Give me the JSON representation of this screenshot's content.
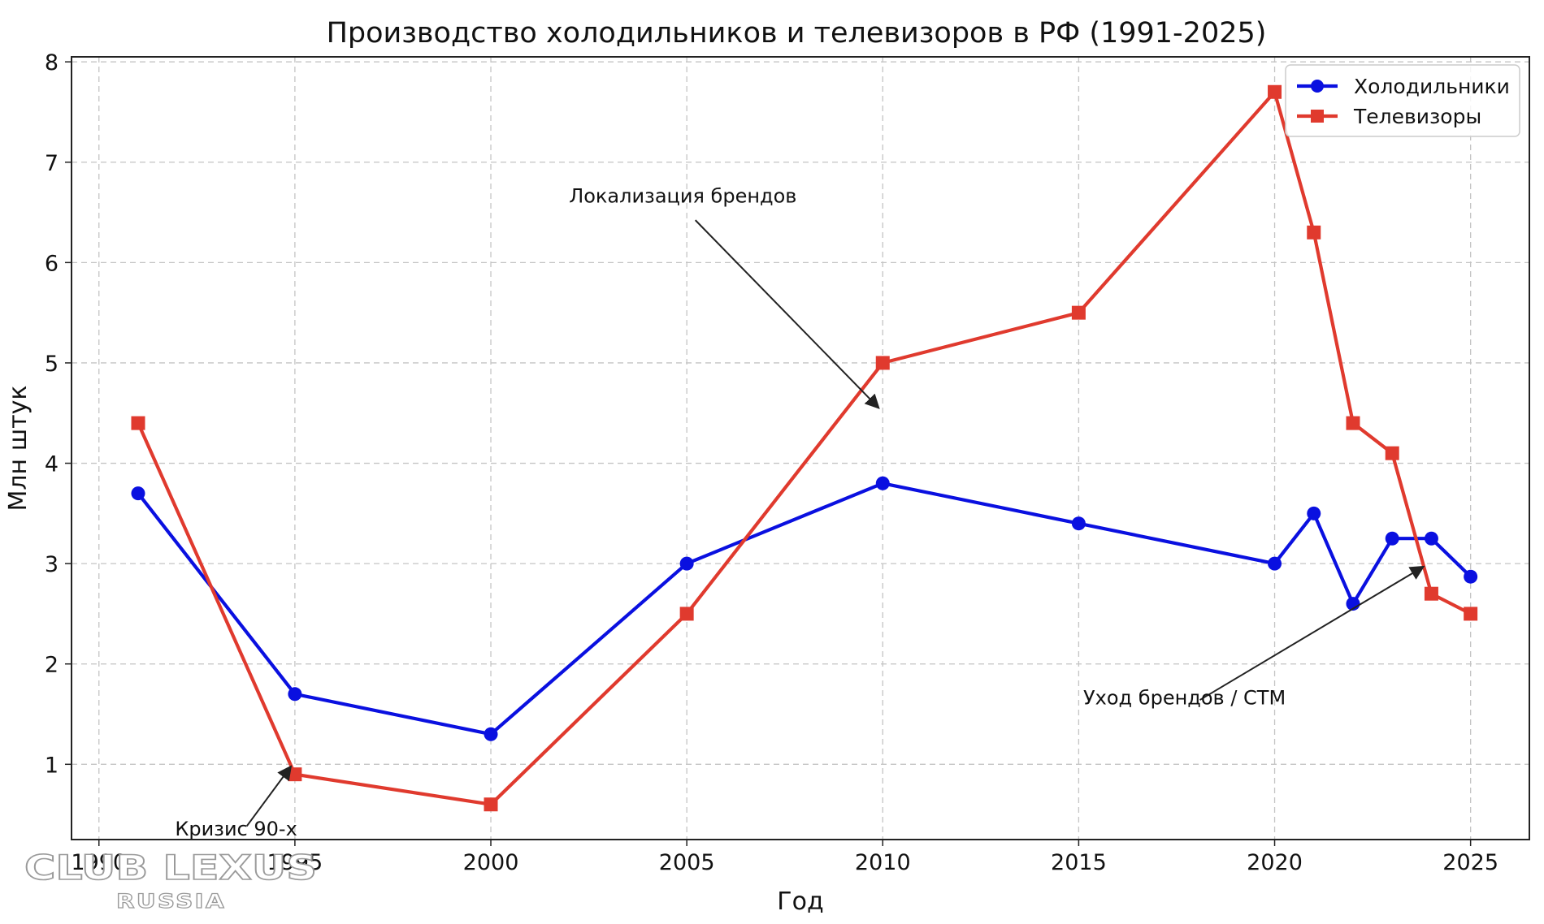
{
  "chart_data": {
    "type": "line",
    "title": "Производство холодильников и телевизоров в РФ (1991-2025)",
    "xlabel": "Год",
    "ylabel": "Млн штук",
    "xlim": [
      1989.3,
      2026.5
    ],
    "ylim": [
      0.25,
      8.05
    ],
    "x_ticks": [
      1990,
      1995,
      2000,
      2005,
      2010,
      2015,
      2020,
      2025
    ],
    "y_ticks": [
      1,
      2,
      3,
      4,
      5,
      6,
      7,
      8
    ],
    "grid": true,
    "legend_position": "top-right",
    "series": [
      {
        "name": "Холодильники",
        "color": "#0a10e0",
        "marker": "circle",
        "x": [
          1991,
          1995,
          2000,
          2005,
          2010,
          2015,
          2020,
          2021,
          2022,
          2023,
          2024,
          2025
        ],
        "values": [
          3.7,
          1.7,
          1.3,
          3.0,
          3.8,
          3.4,
          3.0,
          3.5,
          2.6,
          3.25,
          3.25,
          2.87
        ]
      },
      {
        "name": "Телевизоры",
        "color": "#e03a2e",
        "marker": "square",
        "x": [
          1991,
          1995,
          2000,
          2005,
          2010,
          2015,
          2020,
          2021,
          2022,
          2023,
          2024,
          2025
        ],
        "values": [
          4.4,
          0.9,
          0.6,
          2.5,
          5.0,
          5.5,
          7.7,
          6.3,
          4.4,
          4.1,
          2.7,
          2.5
        ]
      }
    ],
    "annotations": [
      {
        "text": "Локализация брендов",
        "text_x": 2004.9,
        "text_y": 6.55,
        "arrow_x": 2009.9,
        "arrow_y": 4.55
      },
      {
        "text": "Уход брендов / СТМ",
        "text_x": 2017.7,
        "text_y": 1.55,
        "arrow_x": 2023.8,
        "arrow_y": 2.97
      },
      {
        "text": "Кризис 90-х",
        "text_x": 1993.5,
        "text_y": 0.24,
        "arrow_x": 1994.9,
        "arrow_y": 0.98
      }
    ]
  },
  "watermark": {
    "main": "CLUB LEXUS",
    "sub": "RUSSIA"
  }
}
